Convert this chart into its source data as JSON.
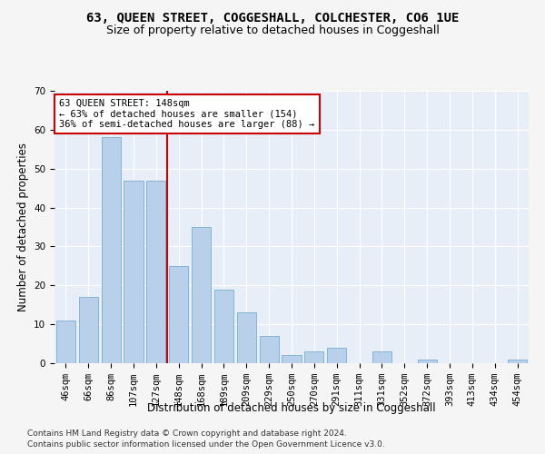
{
  "title": "63, QUEEN STREET, COGGESHALL, COLCHESTER, CO6 1UE",
  "subtitle": "Size of property relative to detached houses in Coggeshall",
  "xlabel": "Distribution of detached houses by size in Coggeshall",
  "ylabel": "Number of detached properties",
  "categories": [
    "46sqm",
    "66sqm",
    "86sqm",
    "107sqm",
    "127sqm",
    "148sqm",
    "168sqm",
    "189sqm",
    "209sqm",
    "229sqm",
    "250sqm",
    "270sqm",
    "291sqm",
    "311sqm",
    "331sqm",
    "352sqm",
    "372sqm",
    "393sqm",
    "413sqm",
    "434sqm",
    "454sqm"
  ],
  "values": [
    11,
    17,
    58,
    47,
    47,
    25,
    35,
    19,
    13,
    7,
    2,
    3,
    4,
    0,
    3,
    0,
    1,
    0,
    0,
    0,
    1
  ],
  "bar_color": "#b8d0ea",
  "bar_edge_color": "#7aaed0",
  "ref_line_index": 5,
  "ref_line_color": "#cc0000",
  "annotation_title": "63 QUEEN STREET: 148sqm",
  "annotation_line1": "← 63% of detached houses are smaller (154)",
  "annotation_line2": "36% of semi-detached houses are larger (88) →",
  "annotation_box_color": "#cc0000",
  "ylim": [
    0,
    70
  ],
  "yticks": [
    0,
    10,
    20,
    30,
    40,
    50,
    60,
    70
  ],
  "footer1": "Contains HM Land Registry data © Crown copyright and database right 2024.",
  "footer2": "Contains public sector information licensed under the Open Government Licence v3.0.",
  "bg_color": "#e8eef8",
  "grid_color": "#ffffff",
  "fig_bg_color": "#f5f5f5",
  "title_fontsize": 10,
  "subtitle_fontsize": 9,
  "axis_label_fontsize": 8.5,
  "tick_fontsize": 7.5,
  "footer_fontsize": 6.5
}
